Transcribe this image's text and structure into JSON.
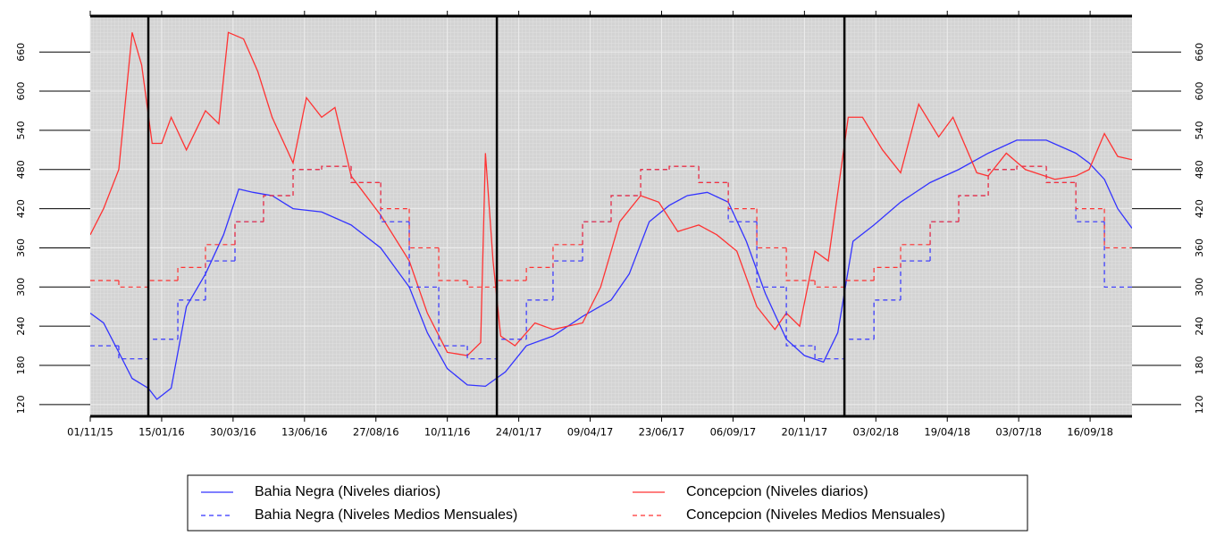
{
  "chart_data": {
    "type": "line",
    "xlim": [
      "01/11/15",
      "30/10/18"
    ],
    "xticks": [
      "01/11/15",
      "15/01/16",
      "30/03/16",
      "13/06/16",
      "27/08/16",
      "10/11/16",
      "24/01/17",
      "09/04/17",
      "23/06/17",
      "06/09/17",
      "20/11/17",
      "03/02/18",
      "19/04/18",
      "03/07/18",
      "16/09/18"
    ],
    "ylim": [
      102,
      715
    ],
    "yticks": [
      120,
      180,
      240,
      300,
      360,
      420,
      480,
      540,
      600,
      660
    ],
    "vlines": [
      "01/01/16",
      "01/01/17",
      "01/01/18"
    ],
    "grid": true,
    "legend": "bottom",
    "series": [
      {
        "name": "Bahia Negra (Niveles diarios)",
        "color": "#3333ff",
        "dashed": false,
        "x": [
          "01/11/15",
          "15/11/15",
          "01/12/15",
          "15/12/15",
          "01/01/16",
          "10/01/16",
          "25/01/16",
          "10/02/16",
          "01/03/16",
          "20/03/16",
          "05/04/16",
          "20/04/16",
          "10/05/16",
          "01/06/16",
          "01/07/16",
          "01/08/16",
          "01/09/16",
          "01/10/16",
          "20/10/16",
          "10/11/16",
          "01/12/16",
          "20/12/16",
          "10/01/17",
          "01/02/17",
          "01/03/17",
          "01/04/17",
          "01/05/17",
          "20/05/17",
          "10/06/17",
          "01/07/17",
          "20/07/17",
          "10/08/17",
          "01/09/17",
          "20/09/17",
          "10/10/17",
          "01/11/17",
          "20/11/17",
          "10/12/17",
          "25/12/17",
          "10/01/18",
          "01/02/18",
          "01/03/18",
          "01/04/18",
          "01/05/18",
          "01/06/18",
          "01/07/18",
          "01/08/18",
          "01/09/18",
          "15/09/18",
          "01/10/18",
          "15/10/18",
          "30/10/18"
        ],
        "values": [
          260,
          245,
          200,
          160,
          145,
          128,
          145,
          270,
          320,
          380,
          450,
          445,
          440,
          420,
          415,
          395,
          360,
          300,
          230,
          175,
          150,
          148,
          170,
          210,
          225,
          255,
          280,
          320,
          400,
          425,
          440,
          445,
          430,
          370,
          290,
          220,
          195,
          185,
          230,
          370,
          395,
          430,
          460,
          480,
          505,
          525,
          525,
          505,
          490,
          465,
          420,
          390
        ]
      },
      {
        "name": "Concepcion (Niveles diarios)",
        "color": "#ff3333",
        "dashed": false,
        "x": [
          "01/11/15",
          "15/11/15",
          "01/12/15",
          "15/12/15",
          "25/12/15",
          "05/01/16",
          "15/01/16",
          "25/01/16",
          "10/02/16",
          "01/03/16",
          "15/03/16",
          "25/03/16",
          "10/04/16",
          "25/04/16",
          "10/05/16",
          "01/06/16",
          "15/06/16",
          "01/07/16",
          "15/07/16",
          "01/08/16",
          "01/09/16",
          "01/10/16",
          "20/10/16",
          "10/11/16",
          "01/12/16",
          "15/12/16",
          "20/12/16",
          "28/12/16",
          "05/01/17",
          "20/01/17",
          "10/02/17",
          "01/03/17",
          "01/04/17",
          "20/04/17",
          "10/05/17",
          "01/06/17",
          "20/06/17",
          "10/07/17",
          "01/08/17",
          "20/08/17",
          "10/09/17",
          "01/10/17",
          "20/10/17",
          "01/11/17",
          "15/11/17",
          "01/12/17",
          "15/12/17",
          "05/01/18",
          "20/01/18",
          "10/02/18",
          "01/03/18",
          "20/03/18",
          "10/04/18",
          "25/04/18",
          "20/05/18",
          "01/06/18",
          "20/06/18",
          "10/07/18",
          "10/08/18",
          "01/09/18",
          "15/09/18",
          "01/10/18",
          "15/10/18",
          "30/10/18"
        ],
        "values": [
          380,
          420,
          480,
          690,
          640,
          520,
          520,
          560,
          510,
          570,
          550,
          690,
          680,
          630,
          560,
          490,
          590,
          560,
          575,
          470,
          410,
          340,
          260,
          200,
          195,
          215,
          505,
          340,
          225,
          210,
          245,
          235,
          245,
          300,
          400,
          440,
          430,
          385,
          395,
          380,
          355,
          270,
          235,
          260,
          240,
          355,
          340,
          560,
          560,
          510,
          475,
          580,
          530,
          560,
          475,
          470,
          505,
          480,
          465,
          470,
          480,
          535,
          500,
          495
        ]
      },
      {
        "name": "Bahia Negra (Niveles Medios Mensuales)",
        "color": "#3333ff",
        "dashed": true,
        "x": [
          "01/11/15",
          "01/12/15",
          "01/01/16",
          "01/02/16",
          "01/03/16",
          "01/04/16",
          "01/05/16",
          "01/06/16",
          "01/07/16",
          "01/08/16",
          "01/09/16",
          "01/10/16",
          "01/11/16",
          "01/12/16",
          "01/01/17",
          "01/02/17",
          "01/03/17",
          "01/04/17",
          "01/05/17",
          "01/06/17",
          "01/07/17",
          "01/08/17",
          "01/09/17",
          "01/10/17",
          "01/11/17",
          "01/12/17",
          "01/01/18",
          "01/02/18",
          "01/03/18",
          "01/04/18",
          "01/05/18",
          "01/06/18",
          "01/07/18",
          "01/08/18",
          "01/09/18",
          "01/10/18"
        ],
        "values": [
          210,
          190,
          220,
          280,
          340,
          400,
          440,
          480,
          485,
          460,
          400,
          300,
          210,
          190,
          220,
          280,
          340,
          400,
          440,
          480,
          485,
          460,
          400,
          300,
          210,
          190,
          220,
          280,
          340,
          400,
          440,
          480,
          485,
          460,
          400,
          300
        ]
      },
      {
        "name": "Concepcion (Niveles Medios Mensuales)",
        "color": "#ff3333",
        "dashed": true,
        "x": [
          "01/11/15",
          "01/12/15",
          "01/01/16",
          "01/02/16",
          "01/03/16",
          "01/04/16",
          "01/05/16",
          "01/06/16",
          "01/07/16",
          "01/08/16",
          "01/09/16",
          "01/10/16",
          "01/11/16",
          "01/12/16",
          "01/01/17",
          "01/02/17",
          "01/03/17",
          "01/04/17",
          "01/05/17",
          "01/06/17",
          "01/07/17",
          "01/08/17",
          "01/09/17",
          "01/10/17",
          "01/11/17",
          "01/12/17",
          "01/01/18",
          "01/02/18",
          "01/03/18",
          "01/04/18",
          "01/05/18",
          "01/06/18",
          "01/07/18",
          "01/08/18",
          "01/09/18",
          "01/10/18"
        ],
        "values": [
          310,
          300,
          310,
          330,
          365,
          400,
          440,
          480,
          485,
          460,
          420,
          360,
          310,
          300,
          310,
          330,
          365,
          400,
          440,
          480,
          485,
          460,
          420,
          360,
          310,
          300,
          310,
          330,
          365,
          400,
          440,
          480,
          485,
          460,
          420,
          360
        ]
      }
    ]
  }
}
